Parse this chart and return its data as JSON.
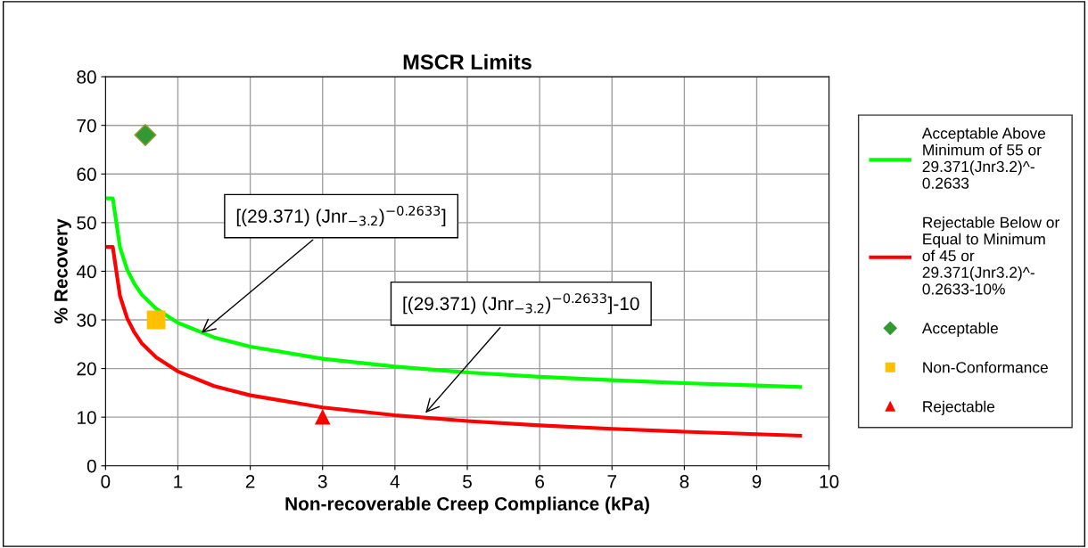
{
  "chart_data": {
    "type": "line",
    "title": "MSCR Limits",
    "xlabel": "Non-recoverable Creep Compliance (kPa)",
    "ylabel": "% Recovery",
    "xlim": [
      0,
      10
    ],
    "xticks": [
      0,
      1,
      2,
      3,
      4,
      5,
      6,
      7,
      8,
      9,
      10
    ],
    "ylim": [
      0,
      80
    ],
    "yticks": [
      0,
      10,
      20,
      30,
      40,
      50,
      60,
      70,
      80
    ],
    "grid": true,
    "legend": "right",
    "series": [
      {
        "name": "Acceptable Above\nMinimum of 55 or\n29.371(Jnr3.2)^-\n0.2633",
        "color": "#00ff00",
        "marker": "none",
        "x": [
          0,
          0.1,
          0.2,
          0.3,
          0.4,
          0.5,
          0.7,
          1,
          1.5,
          2,
          3,
          4,
          5,
          6,
          7,
          8,
          9,
          9.6
        ],
        "values": [
          55,
          55,
          44.9,
          40.3,
          37.4,
          35.2,
          32.3,
          29.4,
          26.4,
          24.5,
          22.0,
          20.4,
          19.2,
          18.3,
          17.6,
          17.0,
          16.5,
          16.2
        ]
      },
      {
        "name": "Rejectable Below or\nEqual to Minimum\nof 45 or\n29.371(Jnr3.2)^-\n0.2633-10%",
        "color": "#ff0000",
        "marker": "none",
        "x": [
          0,
          0.1,
          0.2,
          0.3,
          0.4,
          0.5,
          0.7,
          1,
          1.5,
          2,
          3,
          4,
          5,
          6,
          7,
          8,
          9,
          9.6
        ],
        "values": [
          45,
          45,
          34.9,
          30.3,
          27.4,
          25.2,
          22.3,
          19.4,
          16.4,
          14.5,
          12.0,
          10.4,
          9.2,
          8.3,
          7.6,
          7.0,
          6.5,
          6.2
        ]
      },
      {
        "name": "Acceptable",
        "type": "scatter",
        "marker": "diamond",
        "color": "#339933",
        "x": [
          0.55
        ],
        "values": [
          68
        ]
      },
      {
        "name": "Non-Conformance",
        "type": "scatter",
        "marker": "square",
        "color": "#ffc000",
        "x": [
          0.7
        ],
        "values": [
          30
        ]
      },
      {
        "name": "Rejectable",
        "type": "scatter",
        "marker": "triangle",
        "color": "#ff0000",
        "x": [
          3
        ],
        "values": [
          10
        ]
      }
    ],
    "annotations": [
      {
        "text": "[(29.371) (Jnr$_{−3.2}$)$^{−0.2633}$]",
        "x": 1.3,
        "y": 27
      },
      {
        "text": "[(29.371) (Jnr$_{−3.2}$)$^{−0.2633}$]-10",
        "x": 4.4,
        "y": 10.5
      }
    ]
  }
}
